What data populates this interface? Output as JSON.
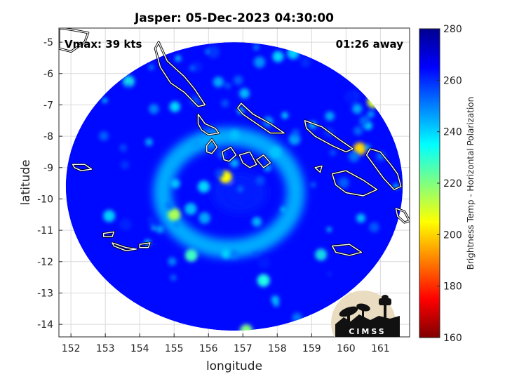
{
  "chart_data": {
    "type": "heatmap",
    "title": "Jasper: 05-Dec-2023 04:30:00",
    "xlabel": "longitude",
    "ylabel": "latitude",
    "xlim": [
      151.65,
      161.85
    ],
    "ylim": [
      -14.4,
      -4.55
    ],
    "xticks": [
      152,
      153,
      154,
      155,
      156,
      157,
      158,
      159,
      160,
      161
    ],
    "yticks": [
      -5,
      -6,
      -7,
      -8,
      -9,
      -10,
      -11,
      -12,
      -13,
      -14
    ],
    "grid": true,
    "colorbar": {
      "label": "Brightness Temp - Horizontal Polarization",
      "range": [
        160,
        280
      ],
      "ticks": [
        160,
        180,
        200,
        220,
        240,
        260,
        280
      ],
      "colormap": "jet",
      "colors": [
        "#7f0000",
        "#ff0000",
        "#ff8000",
        "#ffff00",
        "#80ff80",
        "#00ffff",
        "#0080ff",
        "#0000ff",
        "#00008f"
      ]
    },
    "swath": {
      "center_lon": 156.75,
      "center_lat": -9.6,
      "radius_lon": 4.9,
      "radius_lat": 4.6
    },
    "features": [
      {
        "name": "eye",
        "lon": 156.9,
        "lat": -9.8,
        "value": 262
      },
      {
        "name": "inner-band",
        "lon": 156.5,
        "lat": -9.3,
        "value": 205
      },
      {
        "name": "west-band",
        "lon": 155.0,
        "lat": -10.5,
        "value": 215
      },
      {
        "name": "southwest-band",
        "lon": 155.5,
        "lat": -11.8,
        "value": 228
      },
      {
        "name": "east-convection",
        "lon": 160.4,
        "lat": -8.4,
        "value": 200
      },
      {
        "name": "east-convection-2",
        "lon": 160.8,
        "lat": -6.9,
        "value": 210
      },
      {
        "name": "south-cell",
        "lon": 157.1,
        "lat": -14.2,
        "value": 220
      },
      {
        "name": "south-band",
        "lon": 157.6,
        "lat": -12.6,
        "value": 232
      }
    ],
    "annotations": {
      "vmax": "Vmax: 39 kts",
      "away": "01:26 away"
    },
    "coastlines": [
      {
        "name": "choiseul-island",
        "points": [
          [
            154.55,
            -5.0
          ],
          [
            154.8,
            -5.6
          ],
          [
            155.3,
            -6.1
          ],
          [
            155.6,
            -6.5
          ],
          [
            155.9,
            -7.0
          ],
          [
            155.7,
            -7.05
          ],
          [
            155.3,
            -6.6
          ],
          [
            154.9,
            -6.3
          ],
          [
            154.6,
            -5.8
          ],
          [
            154.45,
            -5.2
          ]
        ]
      },
      {
        "name": "santa-isabel-north",
        "points": [
          [
            155.7,
            -7.3
          ],
          [
            155.9,
            -7.6
          ],
          [
            156.2,
            -7.75
          ],
          [
            156.3,
            -7.9
          ],
          [
            156.0,
            -7.95
          ],
          [
            155.8,
            -7.8
          ],
          [
            155.7,
            -7.6
          ]
        ]
      },
      {
        "name": "santa-isabel",
        "points": [
          [
            156.95,
            -6.95
          ],
          [
            157.3,
            -7.3
          ],
          [
            157.8,
            -7.6
          ],
          [
            158.2,
            -7.9
          ],
          [
            157.8,
            -7.9
          ],
          [
            157.4,
            -7.6
          ],
          [
            157.0,
            -7.3
          ],
          [
            156.85,
            -7.1
          ]
        ]
      },
      {
        "name": "new-georgia-1",
        "points": [
          [
            155.95,
            -8.3
          ],
          [
            156.1,
            -8.1
          ],
          [
            156.25,
            -8.35
          ],
          [
            156.1,
            -8.55
          ],
          [
            155.95,
            -8.5
          ]
        ]
      },
      {
        "name": "new-georgia-2",
        "points": [
          [
            156.4,
            -8.5
          ],
          [
            156.65,
            -8.35
          ],
          [
            156.8,
            -8.6
          ],
          [
            156.6,
            -8.8
          ],
          [
            156.45,
            -8.75
          ]
        ]
      },
      {
        "name": "new-georgia-3",
        "points": [
          [
            156.9,
            -8.6
          ],
          [
            157.2,
            -8.5
          ],
          [
            157.4,
            -8.9
          ],
          [
            157.2,
            -9.0
          ],
          [
            157.0,
            -8.85
          ]
        ]
      },
      {
        "name": "new-georgia-4",
        "points": [
          [
            157.4,
            -8.75
          ],
          [
            157.6,
            -8.6
          ],
          [
            157.8,
            -8.85
          ],
          [
            157.6,
            -9.0
          ]
        ]
      },
      {
        "name": "malaita",
        "points": [
          [
            158.8,
            -7.5
          ],
          [
            159.3,
            -7.7
          ],
          [
            159.8,
            -8.1
          ],
          [
            160.2,
            -8.4
          ],
          [
            160.0,
            -8.5
          ],
          [
            159.6,
            -8.3
          ],
          [
            159.1,
            -8.0
          ],
          [
            158.85,
            -7.75
          ]
        ]
      },
      {
        "name": "guadalcanal",
        "points": [
          [
            159.6,
            -9.2
          ],
          [
            160.0,
            -9.1
          ],
          [
            160.5,
            -9.4
          ],
          [
            160.9,
            -9.7
          ],
          [
            160.5,
            -9.9
          ],
          [
            160.0,
            -9.8
          ],
          [
            159.7,
            -9.55
          ]
        ]
      },
      {
        "name": "malaita-east",
        "points": [
          [
            160.7,
            -8.4
          ],
          [
            161.0,
            -8.5
          ],
          [
            161.3,
            -8.9
          ],
          [
            161.5,
            -9.2
          ],
          [
            161.6,
            -9.6
          ],
          [
            161.4,
            -9.7
          ],
          [
            161.1,
            -9.35
          ],
          [
            160.8,
            -8.9
          ],
          [
            160.6,
            -8.6
          ]
        ]
      },
      {
        "name": "rennell",
        "points": [
          [
            159.6,
            -11.5
          ],
          [
            160.1,
            -11.45
          ],
          [
            160.45,
            -11.7
          ],
          [
            160.1,
            -11.8
          ],
          [
            159.7,
            -11.7
          ]
        ]
      },
      {
        "name": "west-islet",
        "points": [
          [
            152.05,
            -8.9
          ],
          [
            152.4,
            -8.9
          ],
          [
            152.6,
            -9.05
          ],
          [
            152.3,
            -9.1
          ],
          [
            152.1,
            -9.0
          ]
        ]
      },
      {
        "name": "south-islet-1",
        "points": [
          [
            152.95,
            -11.1
          ],
          [
            153.25,
            -11.05
          ],
          [
            153.2,
            -11.2
          ],
          [
            152.95,
            -11.2
          ]
        ]
      },
      {
        "name": "south-islet-2",
        "points": [
          [
            153.2,
            -11.4
          ],
          [
            153.6,
            -11.55
          ],
          [
            153.9,
            -11.6
          ],
          [
            153.6,
            -11.65
          ],
          [
            153.25,
            -11.5
          ]
        ]
      },
      {
        "name": "south-islet-3",
        "points": [
          [
            154.0,
            -11.45
          ],
          [
            154.3,
            -11.4
          ],
          [
            154.25,
            -11.55
          ],
          [
            154.0,
            -11.55
          ]
        ]
      },
      {
        "name": "east-islet",
        "points": [
          [
            161.45,
            -10.3
          ],
          [
            161.7,
            -10.4
          ],
          [
            161.85,
            -10.7
          ],
          [
            161.7,
            -10.75
          ],
          [
            161.5,
            -10.55
          ]
        ]
      },
      {
        "name": "nw-coast",
        "points": [
          [
            151.65,
            -4.55
          ],
          [
            152.0,
            -4.6
          ],
          [
            152.5,
            -4.7
          ],
          [
            152.4,
            -5.0
          ],
          [
            152.0,
            -5.3
          ],
          [
            151.65,
            -5.2
          ]
        ]
      },
      {
        "name": "ne-islet",
        "points": [
          [
            159.1,
            -9.0
          ],
          [
            159.3,
            -8.95
          ],
          [
            159.25,
            -9.15
          ]
        ]
      }
    ]
  }
}
